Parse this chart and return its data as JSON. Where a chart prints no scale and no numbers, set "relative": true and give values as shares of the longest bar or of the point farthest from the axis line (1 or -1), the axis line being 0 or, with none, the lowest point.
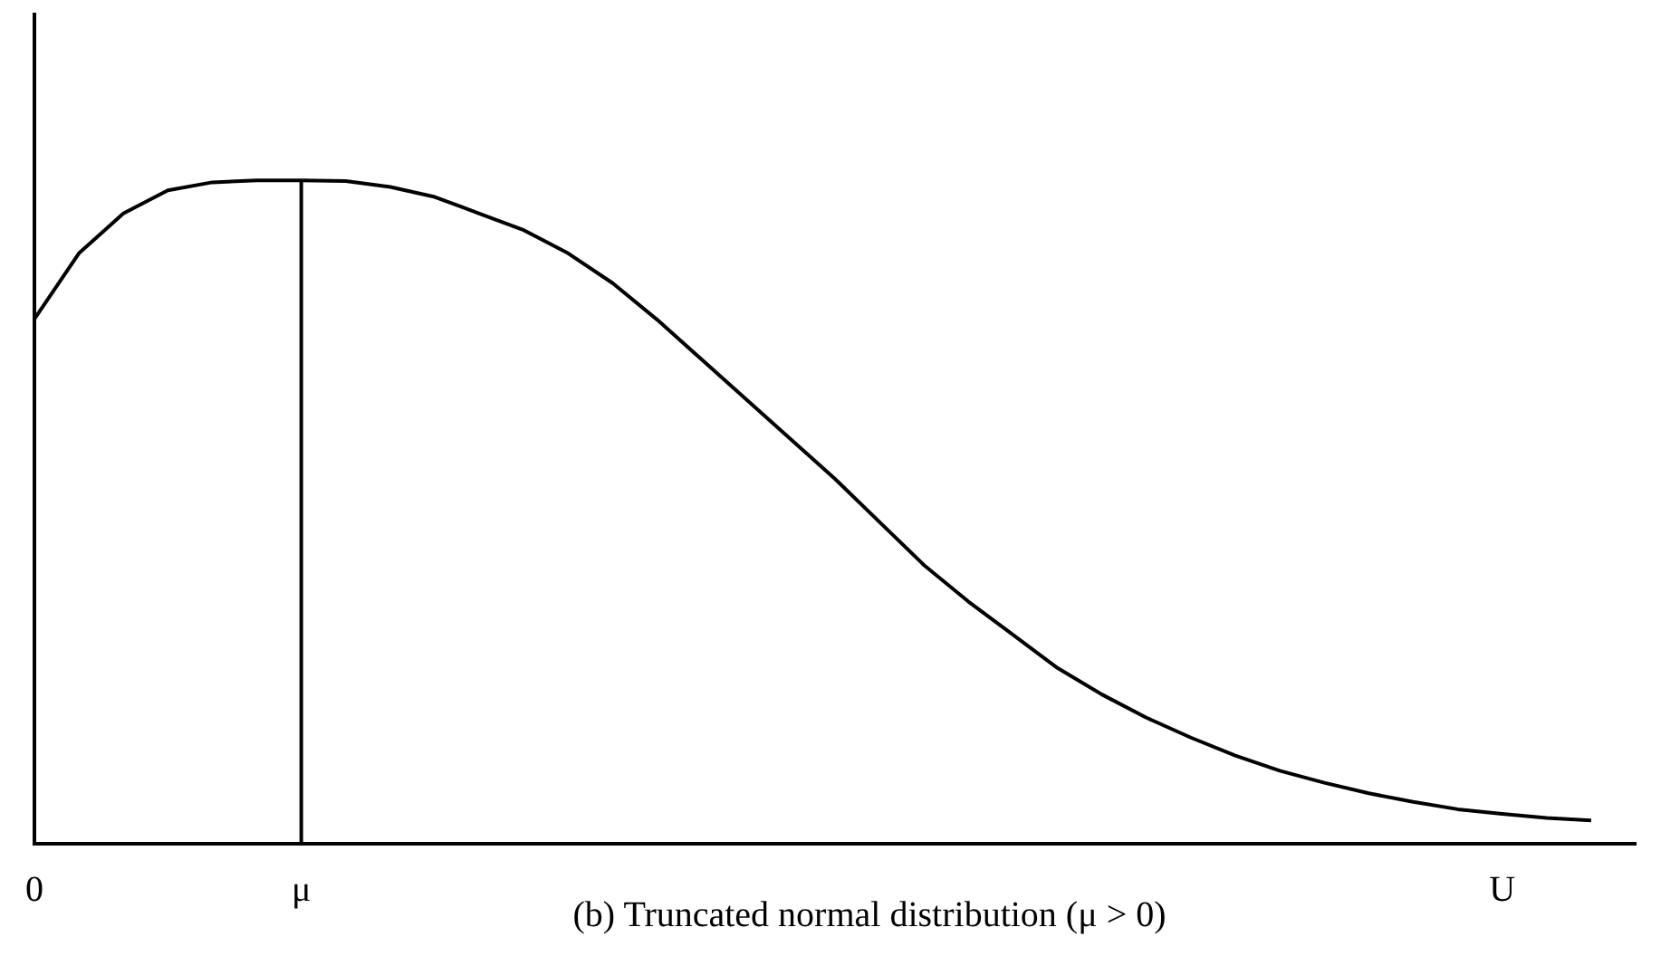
{
  "chart_data": {
    "type": "line",
    "title": "(b) Truncated normal distribution (μ > 0)",
    "relative": true,
    "categories": [
      "0",
      null,
      null,
      null,
      null,
      null,
      "μ",
      null,
      null,
      null,
      null,
      null,
      null,
      null,
      null,
      null,
      null,
      null,
      null,
      null,
      null,
      null,
      null,
      null,
      null,
      null,
      null,
      null,
      null,
      null,
      null,
      null,
      null,
      "U",
      null,
      null,
      null
    ],
    "series": [
      {
        "color": "#000000",
        "values": [
          0.791,
          0.89,
          0.95,
          0.985,
          0.997,
          1.0,
          1.0,
          0.999,
          0.99,
          0.975,
          0.95,
          0.925,
          0.89,
          0.845,
          0.79,
          0.73,
          0.67,
          0.61,
          0.55,
          0.485,
          0.42,
          0.365,
          0.315,
          0.265,
          0.225,
          0.19,
          0.16,
          0.133,
          0.11,
          0.092,
          0.076,
          0.063,
          0.052,
          0.045,
          0.039,
          0.035,
          null
        ]
      }
    ],
    "ref_lines": [
      {
        "axis": "x",
        "value": "μ",
        "color": "#000000"
      }
    ],
    "grid": false,
    "legend": false,
    "marker": "none",
    "line_style": "solid"
  }
}
